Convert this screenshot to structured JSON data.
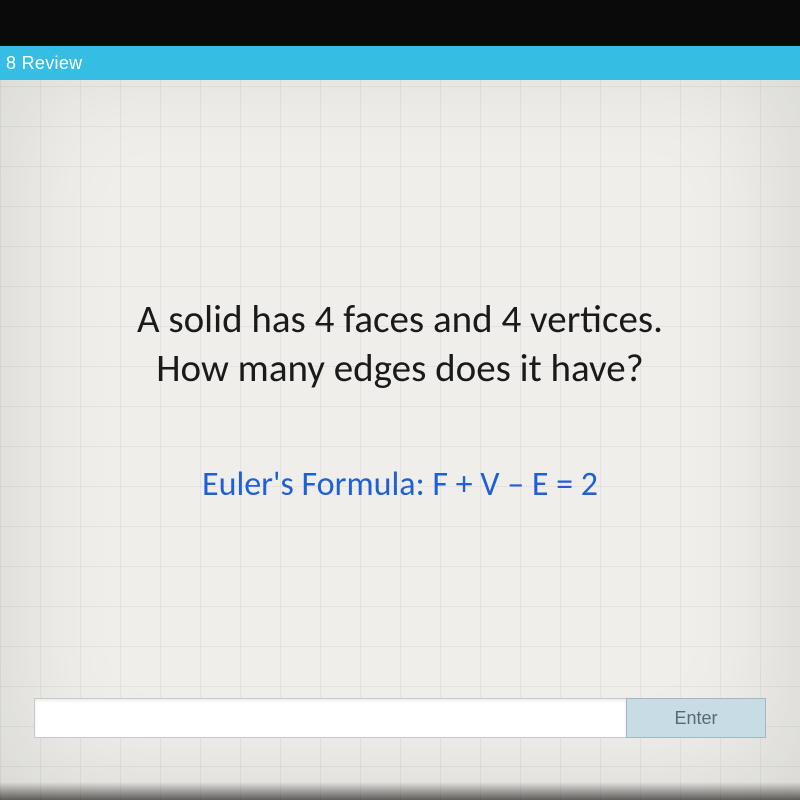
{
  "header": {
    "title": "8 Review",
    "bar_color": "#35bde4",
    "text_color": "#ffffff"
  },
  "question": {
    "line1": "A solid has 4 faces and 4 vertices.",
    "line2": "How many edges does it have?",
    "text_color": "#1a1a1a",
    "font_size_pt": 30
  },
  "formula": {
    "text": "Euler's Formula:  F + V – E = 2",
    "text_color": "#1f5fd8",
    "font_size_pt": 26
  },
  "answer": {
    "input_value": "",
    "input_placeholder": "",
    "button_label": "Enter",
    "button_bg": "#c7dce4",
    "button_text_color": "#586a72",
    "input_bg": "#ffffff"
  },
  "page": {
    "background_color": "#efeeea",
    "grid_color": "#cdcdcd",
    "outer_frame_color": "#1a1410"
  }
}
